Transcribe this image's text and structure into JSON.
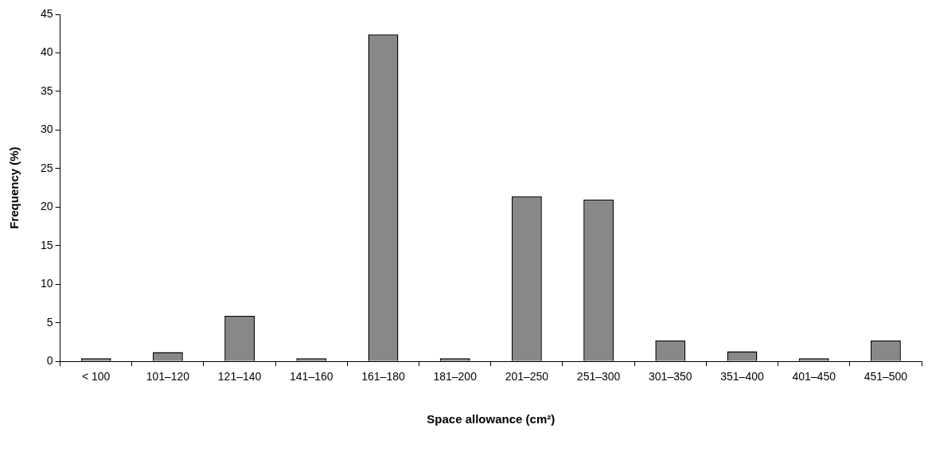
{
  "chart_data": {
    "type": "bar",
    "xlabel": "Space allowance (cm²)",
    "ylabel": "Frequency (%)",
    "categories": [
      "< 100",
      "101–120",
      "121–140",
      "141–160",
      "161–180",
      "181–200",
      "201–250",
      "251–300",
      "301–350",
      "351–400",
      "401–450",
      "451–500"
    ],
    "values": [
      0.4,
      1.2,
      5.9,
      0.4,
      42.4,
      0.4,
      21.4,
      21.0,
      2.7,
      1.3,
      0.4,
      2.7
    ],
    "color": "#888888",
    "ylim": [
      0,
      45
    ],
    "yticks": [
      0,
      5,
      10,
      15,
      20,
      25,
      30,
      35,
      40,
      45
    ],
    "grid": false,
    "legend": false
  }
}
